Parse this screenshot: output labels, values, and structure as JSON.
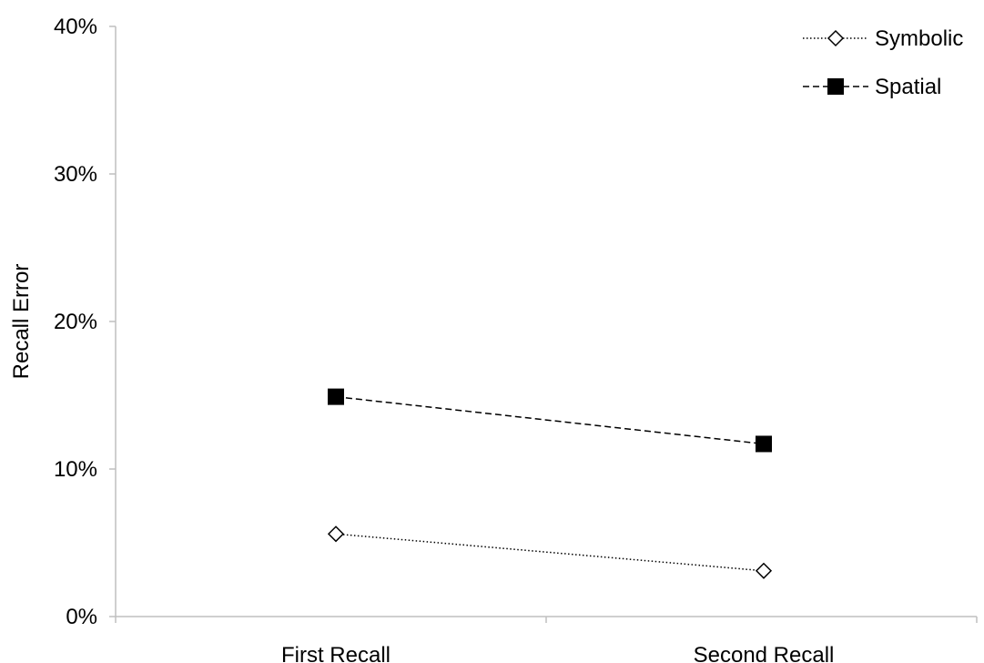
{
  "chart_data": {
    "type": "line",
    "title": "",
    "xlabel": "",
    "ylabel": "Recall Error",
    "categories": [
      "First Recall",
      "Second Recall"
    ],
    "ylim": [
      0,
      0.4
    ],
    "yticks": [
      0,
      0.1,
      0.2,
      0.3,
      0.4
    ],
    "ytick_labels": [
      "0%",
      "10%",
      "20%",
      "30%",
      "40%"
    ],
    "grid": false,
    "legend_position": "top-right",
    "series": [
      {
        "name": "Symbolic",
        "values": [
          0.056,
          0.031
        ],
        "marker": "open-diamond-icon",
        "line_style": "dotted",
        "color": "#000000"
      },
      {
        "name": "Spatial",
        "values": [
          0.149,
          0.117
        ],
        "marker": "filled-square-icon",
        "line_style": "dashed",
        "color": "#000000"
      }
    ]
  }
}
